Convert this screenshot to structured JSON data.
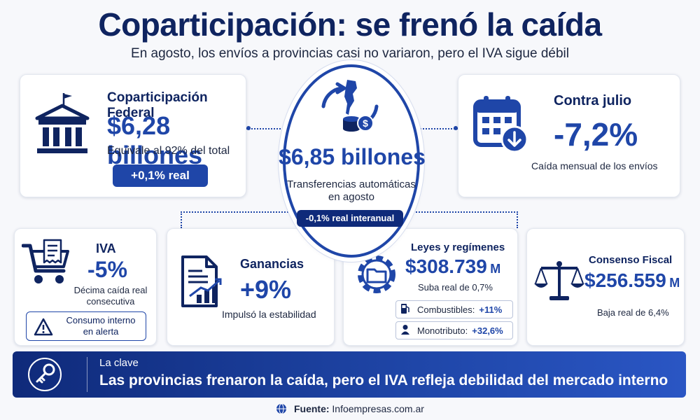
{
  "header": {
    "title": "Coparticipación: se frenó la caída",
    "subtitle": "En agosto, los envíos a provincias casi no variaron, pero el IVA sigue débil"
  },
  "federal": {
    "title": "Coparticipación Federal",
    "value": "$6,28 billones",
    "note": "Equivale al 92% del total",
    "badge": "+0,1% real",
    "icon": "bank-building-icon"
  },
  "center": {
    "value": "$6,85 billones",
    "line1": "Transferencias automáticas",
    "line2": "en agosto",
    "badge": "-0,1% real interanual",
    "icon": "argentina-map-transfer-icon"
  },
  "july": {
    "title": "Contra julio",
    "value": "-7,2%",
    "note": "Caída mensual de los envíos",
    "icon": "calendar-down-icon"
  },
  "iva": {
    "title": "IVA",
    "value": "-5%",
    "note1": "Décima caída real",
    "note2": "consecutiva",
    "alert1": "Consumo interno",
    "alert2": "en alerta",
    "icon": "shopping-cart-receipt-icon"
  },
  "ganancias": {
    "title": "Ganancias",
    "value": "+9%",
    "note": "Impulsó la estabilidad",
    "icon": "document-chart-icon"
  },
  "leyes": {
    "title": "Leyes y regímenes",
    "value": "$308.739",
    "unit": "M",
    "note": "Suba real de 0,7%",
    "rows": [
      {
        "label": "Combustibles:",
        "value": "+11%",
        "icon": "fuel-pump-icon"
      },
      {
        "label": "Monotributo:",
        "value": "+32,6%",
        "icon": "person-icon"
      }
    ]
  },
  "consenso": {
    "title": "Consenso Fiscal",
    "value": "$256.559",
    "unit": "M",
    "note": "Baja real de 6,4%",
    "icon": "balance-scale-icon"
  },
  "banner": {
    "label": "La clave",
    "text": "Las provincias frenaron la caída, pero el IVA refleja debilidad del mercado interno",
    "icon": "key-icon"
  },
  "footer": {
    "source_label": "Fuente:",
    "source": "Infoempresas.com.ar",
    "icon": "globe-icon"
  },
  "colors": {
    "navy": "#0f2460",
    "accent": "#1f46a8",
    "background": "#f7f8fb"
  }
}
